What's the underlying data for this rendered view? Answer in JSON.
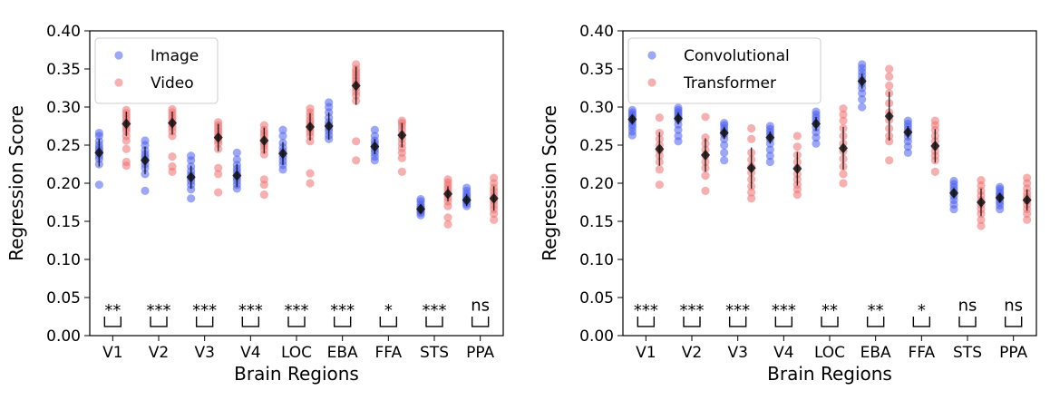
{
  "chart_data": [
    {
      "type": "scatter",
      "xlabel": "Brain Regions",
      "ylabel": "Regression Score",
      "ylim": [
        0.0,
        0.4
      ],
      "yticks": [
        "0.00",
        "0.05",
        "0.10",
        "0.15",
        "0.20",
        "0.25",
        "0.30",
        "0.35",
        "0.40"
      ],
      "categories": [
        "V1",
        "V2",
        "V3",
        "V4",
        "LOC",
        "EBA",
        "FFA",
        "STS",
        "PPA"
      ],
      "legend_position": "top-left",
      "series": [
        {
          "name": "Image",
          "color": "#4a5ef0",
          "means": [
            0.24,
            0.23,
            0.208,
            0.21,
            0.239,
            0.275,
            0.248,
            0.166,
            0.178
          ],
          "errors": [
            0.018,
            0.018,
            0.015,
            0.015,
            0.015,
            0.018,
            0.01,
            0.006,
            0.008
          ],
          "points": [
            [
              0.198,
              0.225,
              0.232,
              0.236,
              0.24,
              0.243,
              0.246,
              0.25,
              0.255,
              0.262,
              0.266
            ],
            [
              0.19,
              0.212,
              0.22,
              0.225,
              0.23,
              0.234,
              0.238,
              0.243,
              0.25,
              0.256
            ],
            [
              0.18,
              0.192,
              0.198,
              0.203,
              0.207,
              0.211,
              0.216,
              0.222,
              0.23,
              0.236
            ],
            [
              0.193,
              0.198,
              0.203,
              0.207,
              0.211,
              0.215,
              0.219,
              0.224,
              0.231,
              0.24
            ],
            [
              0.218,
              0.224,
              0.229,
              0.234,
              0.238,
              0.242,
              0.247,
              0.253,
              0.262,
              0.27
            ],
            [
              0.258,
              0.263,
              0.268,
              0.272,
              0.276,
              0.28,
              0.286,
              0.293,
              0.3,
              0.306
            ],
            [
              0.23,
              0.235,
              0.24,
              0.244,
              0.248,
              0.252,
              0.256,
              0.262,
              0.27
            ],
            [
              0.158,
              0.161,
              0.163,
              0.165,
              0.167,
              0.169,
              0.172,
              0.176,
              0.179
            ],
            [
              0.17,
              0.173,
              0.176,
              0.178,
              0.18,
              0.183,
              0.186,
              0.19,
              0.194
            ]
          ]
        },
        {
          "name": "Video",
          "color": "#f07070",
          "means": [
            0.278,
            0.279,
            0.26,
            0.256,
            0.274,
            0.328,
            0.263,
            0.186,
            0.18
          ],
          "errors": [
            0.016,
            0.015,
            0.018,
            0.017,
            0.018,
            0.025,
            0.016,
            0.01,
            0.016
          ],
          "points": [
            [
              0.223,
              0.228,
              0.245,
              0.256,
              0.262,
              0.268,
              0.272,
              0.276,
              0.28,
              0.284,
              0.288,
              0.292,
              0.296
            ],
            [
              0.215,
              0.222,
              0.235,
              0.262,
              0.268,
              0.273,
              0.277,
              0.281,
              0.285,
              0.289,
              0.293,
              0.297
            ],
            [
              0.188,
              0.212,
              0.22,
              0.245,
              0.252,
              0.256,
              0.26,
              0.264,
              0.268,
              0.272,
              0.276,
              0.28
            ],
            [
              0.185,
              0.198,
              0.205,
              0.238,
              0.244,
              0.249,
              0.253,
              0.257,
              0.262,
              0.266,
              0.27,
              0.276
            ],
            [
              0.2,
              0.213,
              0.255,
              0.262,
              0.267,
              0.271,
              0.275,
              0.279,
              0.283,
              0.288,
              0.293,
              0.298
            ],
            [
              0.23,
              0.255,
              0.308,
              0.315,
              0.32,
              0.325,
              0.33,
              0.334,
              0.338,
              0.342,
              0.346,
              0.35,
              0.356
            ],
            [
              0.215,
              0.233,
              0.24,
              0.246,
              0.252,
              0.258,
              0.264,
              0.27,
              0.275,
              0.279,
              0.282
            ],
            [
              0.146,
              0.155,
              0.17,
              0.176,
              0.181,
              0.185,
              0.189,
              0.193,
              0.197,
              0.201,
              0.205
            ],
            [
              0.152,
              0.16,
              0.166,
              0.171,
              0.176,
              0.18,
              0.184,
              0.189,
              0.194,
              0.2,
              0.207
            ]
          ]
        }
      ],
      "significance": [
        "**",
        "***",
        "***",
        "***",
        "***",
        "***",
        "*",
        "***",
        "ns"
      ]
    },
    {
      "type": "scatter",
      "xlabel": "Brain Regions",
      "ylabel": "Regression Score",
      "ylim": [
        0.0,
        0.4
      ],
      "yticks": [
        "0.00",
        "0.05",
        "0.10",
        "0.15",
        "0.20",
        "0.25",
        "0.30",
        "0.35",
        "0.40"
      ],
      "categories": [
        "V1",
        "V2",
        "V3",
        "V4",
        "LOC",
        "EBA",
        "FFA",
        "STS",
        "PPA"
      ],
      "legend_position": "top-left",
      "series": [
        {
          "name": "Convolutional",
          "color": "#4a5ef0",
          "means": [
            0.284,
            0.285,
            0.266,
            0.26,
            0.278,
            0.334,
            0.267,
            0.187,
            0.181
          ],
          "errors": [
            0.006,
            0.008,
            0.008,
            0.008,
            0.009,
            0.01,
            0.008,
            0.006,
            0.006
          ],
          "points": [
            [
              0.263,
              0.268,
              0.273,
              0.277,
              0.281,
              0.284,
              0.287,
              0.29,
              0.293,
              0.296
            ],
            [
              0.255,
              0.262,
              0.27,
              0.277,
              0.283,
              0.287,
              0.29,
              0.293,
              0.296,
              0.299
            ],
            [
              0.23,
              0.24,
              0.25,
              0.258,
              0.264,
              0.268,
              0.272,
              0.276,
              0.279
            ],
            [
              0.228,
              0.236,
              0.244,
              0.252,
              0.258,
              0.263,
              0.267,
              0.271,
              0.275
            ],
            [
              0.252,
              0.26,
              0.267,
              0.273,
              0.278,
              0.282,
              0.286,
              0.29,
              0.294
            ],
            [
              0.3,
              0.31,
              0.318,
              0.325,
              0.331,
              0.336,
              0.341,
              0.346,
              0.351,
              0.356
            ],
            [
              0.24,
              0.248,
              0.255,
              0.261,
              0.266,
              0.27,
              0.274,
              0.278,
              0.282
            ],
            [
              0.166,
              0.172,
              0.178,
              0.183,
              0.187,
              0.191,
              0.195,
              0.199,
              0.203
            ],
            [
              0.166,
              0.171,
              0.175,
              0.179,
              0.182,
              0.185,
              0.188,
              0.192,
              0.195
            ]
          ]
        },
        {
          "name": "Transformer",
          "color": "#f07070",
          "means": [
            0.245,
            0.237,
            0.22,
            0.219,
            0.246,
            0.288,
            0.249,
            0.175,
            0.178
          ],
          "errors": [
            0.022,
            0.022,
            0.027,
            0.022,
            0.028,
            0.032,
            0.022,
            0.018,
            0.014
          ],
          "points": [
            [
              0.198,
              0.218,
              0.228,
              0.236,
              0.243,
              0.25,
              0.258,
              0.266,
              0.286
            ],
            [
              0.19,
              0.21,
              0.22,
              0.228,
              0.236,
              0.244,
              0.252,
              0.26,
              0.287
            ],
            [
              0.18,
              0.188,
              0.196,
              0.205,
              0.214,
              0.222,
              0.231,
              0.24,
              0.258,
              0.272
            ],
            [
              0.185,
              0.192,
              0.198,
              0.205,
              0.212,
              0.22,
              0.228,
              0.237,
              0.248,
              0.262
            ],
            [
              0.2,
              0.212,
              0.222,
              0.232,
              0.242,
              0.252,
              0.262,
              0.272,
              0.282,
              0.29,
              0.298
            ],
            [
              0.23,
              0.255,
              0.262,
              0.272,
              0.283,
              0.293,
              0.305,
              0.318,
              0.328,
              0.34,
              0.35
            ],
            [
              0.215,
              0.23,
              0.236,
              0.242,
              0.248,
              0.255,
              0.262,
              0.27,
              0.276,
              0.282
            ],
            [
              0.144,
              0.152,
              0.16,
              0.166,
              0.172,
              0.178,
              0.184,
              0.19,
              0.197,
              0.204
            ],
            [
              0.152,
              0.16,
              0.166,
              0.172,
              0.177,
              0.182,
              0.187,
              0.193,
              0.2,
              0.207
            ]
          ]
        }
      ],
      "significance": [
        "***",
        "***",
        "***",
        "***",
        "**",
        "**",
        "*",
        "ns",
        "ns"
      ]
    }
  ]
}
